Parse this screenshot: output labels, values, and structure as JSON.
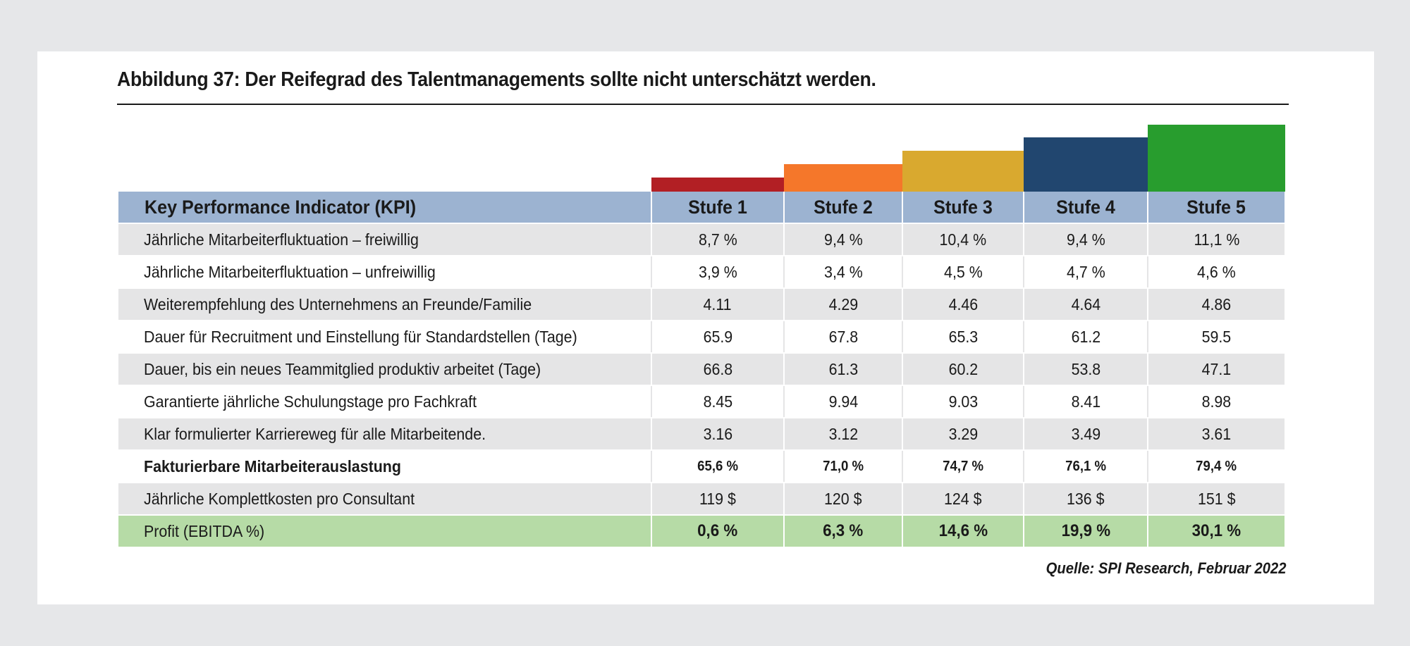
{
  "title": "Abbildung 37: Der Reifegrad des Talentmanagements sollte nicht unterschätzt werden.",
  "header": {
    "kpi": "Key Performance Indicator (KPI)",
    "stages": [
      "Stufe 1",
      "Stufe 2",
      "Stufe 3",
      "Stufe 4",
      "Stufe 5"
    ]
  },
  "stage_colors": [
    "#b21f24",
    "#f5772a",
    "#d9a92f",
    "#21466f",
    "#289d2e"
  ],
  "rows": [
    {
      "label": "Jährliche Mitarbeiterfluktuation – freiwillig",
      "values": [
        "8,7 %",
        "9,4 %",
        "10,4 %",
        "9,4 %",
        "11,1 %"
      ]
    },
    {
      "label": "Jährliche Mitarbeiterfluktuation – unfreiwillig",
      "values": [
        "3,9 %",
        "3,4 %",
        "4,5 %",
        "4,7 %",
        "4,6 %"
      ]
    },
    {
      "label": "Weiterempfehlung des Unternehmens an Freunde/Familie",
      "values": [
        "4.11",
        "4.29",
        "4.46",
        "4.64",
        "4.86"
      ]
    },
    {
      "label": "Dauer für Recruitment und Einstellung für Standardstellen (Tage)",
      "values": [
        "65.9",
        "67.8",
        "65.3",
        "61.2",
        "59.5"
      ]
    },
    {
      "label": "Dauer, bis ein neues Teammitglied produktiv arbeitet (Tage)",
      "values": [
        "66.8",
        "61.3",
        "60.2",
        "53.8",
        "47.1"
      ]
    },
    {
      "label": "Garantierte jährliche Schulungstage pro Fachkraft",
      "values": [
        "8.45",
        "9.94",
        "9.03",
        "8.41",
        "8.98"
      ]
    },
    {
      "label": "Klar formulierter Karriereweg für alle Mitarbeitende.",
      "values": [
        "3.16",
        "3.12",
        "3.29",
        "3.49",
        "3.61"
      ]
    },
    {
      "label": "Fakturierbare Mitarbeiterauslastung",
      "values": [
        "65,6 %",
        "71,0 %",
        "74,7 %",
        "76,1 %",
        "79,4 %"
      ]
    },
    {
      "label": "Jährliche Komplettkosten pro Consultant",
      "values": [
        "119 $",
        "120 $",
        "124 $",
        "136 $",
        "151 $"
      ]
    },
    {
      "label": "Profit (EBITDA %)",
      "values": [
        "0,6 %",
        "6,3 %",
        "14,6 %",
        "19,9 %",
        "30,1 %"
      ]
    }
  ],
  "source": "Quelle: SPI Research, Februar 2022"
}
